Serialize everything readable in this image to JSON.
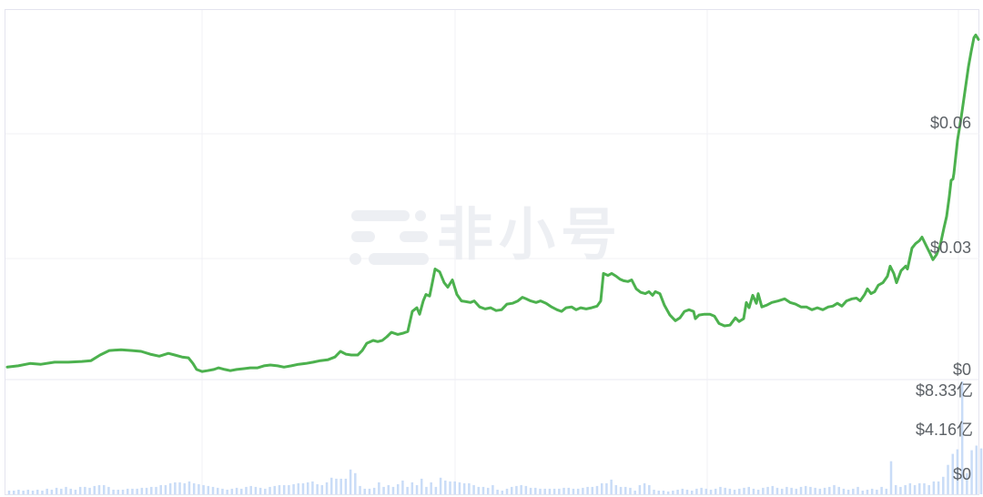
{
  "watermark": {
    "text": "非小号",
    "icon": "feixiaohao-logo"
  },
  "colors": {
    "price_line": "#4cb14e",
    "volume_bar": "#c9dcf7",
    "grid_light": "#f1f1f6",
    "grid_separator": "#e9e9f1",
    "border": "#e4e4ef",
    "axis_label": "#5c6166",
    "watermark": "#edeff3",
    "background": "#ffffff"
  },
  "chart_data": {
    "type": "line",
    "title": "",
    "xlabel": "",
    "ylabel": "",
    "legend": "none",
    "grid": "on",
    "panes": [
      "price",
      "volume"
    ],
    "price_axis": {
      "position": "inside-right",
      "ticks": [
        "$0.06",
        "$0.03",
        "$0"
      ],
      "tick_values": [
        0.06,
        0.03,
        0
      ],
      "min": 0,
      "max": 0.09
    },
    "volume_axis": {
      "position": "inside-right",
      "ticks": [
        "$8.33亿",
        "$4.16亿",
        "$0"
      ],
      "tick_values": [
        833000000,
        416000000,
        0
      ],
      "min_yi": 0,
      "max_yi": 12.49
    },
    "price_series": {
      "name": "price-usd",
      "unit": "$",
      "points": [
        [
          8,
          0.0031
        ],
        [
          20,
          0.0034
        ],
        [
          33,
          0.004
        ],
        [
          45,
          0.0038
        ],
        [
          60,
          0.0043
        ],
        [
          75,
          0.0043
        ],
        [
          90,
          0.0045
        ],
        [
          100,
          0.0047
        ],
        [
          110,
          0.0061
        ],
        [
          120,
          0.0072
        ],
        [
          133,
          0.0074
        ],
        [
          145,
          0.0072
        ],
        [
          155,
          0.007
        ],
        [
          165,
          0.0063
        ],
        [
          175,
          0.0058
        ],
        [
          185,
          0.0065
        ],
        [
          192,
          0.0061
        ],
        [
          200,
          0.0056
        ],
        [
          207,
          0.0054
        ],
        [
          212,
          0.004
        ],
        [
          216,
          0.0025
        ],
        [
          222,
          0.002
        ],
        [
          228,
          0.0022
        ],
        [
          235,
          0.0025
        ],
        [
          240,
          0.0029
        ],
        [
          247,
          0.0025
        ],
        [
          253,
          0.0022
        ],
        [
          260,
          0.0025
        ],
        [
          268,
          0.0027
        ],
        [
          275,
          0.0029
        ],
        [
          283,
          0.0029
        ],
        [
          290,
          0.0034
        ],
        [
          297,
          0.0036
        ],
        [
          305,
          0.0034
        ],
        [
          312,
          0.0031
        ],
        [
          320,
          0.0034
        ],
        [
          328,
          0.0038
        ],
        [
          336,
          0.004
        ],
        [
          344,
          0.0043
        ],
        [
          352,
          0.0047
        ],
        [
          360,
          0.0049
        ],
        [
          368,
          0.0056
        ],
        [
          374,
          0.007
        ],
        [
          380,
          0.0063
        ],
        [
          386,
          0.0061
        ],
        [
          393,
          0.0061
        ],
        [
          398,
          0.0072
        ],
        [
          403,
          0.009
        ],
        [
          410,
          0.0097
        ],
        [
          415,
          0.0094
        ],
        [
          420,
          0.0097
        ],
        [
          425,
          0.0106
        ],
        [
          430,
          0.0117
        ],
        [
          437,
          0.0112
        ],
        [
          443,
          0.0115
        ],
        [
          448,
          0.0119
        ],
        [
          453,
          0.0169
        ],
        [
          458,
          0.0178
        ],
        [
          461,
          0.0162
        ],
        [
          465,
          0.0195
        ],
        [
          468,
          0.0211
        ],
        [
          472,
          0.0207
        ],
        [
          475,
          0.024
        ],
        [
          478,
          0.0274
        ],
        [
          483,
          0.0267
        ],
        [
          488,
          0.024
        ],
        [
          492,
          0.0229
        ],
        [
          497,
          0.0247
        ],
        [
          502,
          0.0211
        ],
        [
          507,
          0.0195
        ],
        [
          512,
          0.0193
        ],
        [
          517,
          0.0191
        ],
        [
          521,
          0.0195
        ],
        [
          527,
          0.018
        ],
        [
          533,
          0.0175
        ],
        [
          539,
          0.0178
        ],
        [
          545,
          0.0171
        ],
        [
          551,
          0.0173
        ],
        [
          557,
          0.0187
        ],
        [
          563,
          0.0189
        ],
        [
          569,
          0.0195
        ],
        [
          574,
          0.0204
        ],
        [
          578,
          0.02
        ],
        [
          583,
          0.0195
        ],
        [
          589,
          0.0191
        ],
        [
          594,
          0.0195
        ],
        [
          600,
          0.0189
        ],
        [
          606,
          0.018
        ],
        [
          612,
          0.0173
        ],
        [
          617,
          0.0169
        ],
        [
          622,
          0.0178
        ],
        [
          628,
          0.018
        ],
        [
          633,
          0.0173
        ],
        [
          638,
          0.0178
        ],
        [
          644,
          0.0175
        ],
        [
          650,
          0.0178
        ],
        [
          656,
          0.0182
        ],
        [
          660,
          0.0195
        ],
        [
          663,
          0.0263
        ],
        [
          668,
          0.0258
        ],
        [
          672,
          0.0263
        ],
        [
          677,
          0.0256
        ],
        [
          681,
          0.0249
        ],
        [
          685,
          0.0245
        ],
        [
          690,
          0.0243
        ],
        [
          694,
          0.0247
        ],
        [
          699,
          0.0225
        ],
        [
          704,
          0.0216
        ],
        [
          709,
          0.0213
        ],
        [
          713,
          0.0218
        ],
        [
          717,
          0.0209
        ],
        [
          720,
          0.0218
        ],
        [
          725,
          0.0213
        ],
        [
          730,
          0.0184
        ],
        [
          736,
          0.016
        ],
        [
          742,
          0.0146
        ],
        [
          747,
          0.0153
        ],
        [
          752,
          0.0169
        ],
        [
          757,
          0.0173
        ],
        [
          762,
          0.0169
        ],
        [
          764,
          0.0151
        ],
        [
          768,
          0.016
        ],
        [
          774,
          0.0162
        ],
        [
          780,
          0.0162
        ],
        [
          785,
          0.0157
        ],
        [
          790,
          0.0139
        ],
        [
          796,
          0.0133
        ],
        [
          802,
          0.0135
        ],
        [
          808,
          0.0153
        ],
        [
          812,
          0.0144
        ],
        [
          817,
          0.0151
        ],
        [
          820,
          0.0191
        ],
        [
          823,
          0.0178
        ],
        [
          827,
          0.0209
        ],
        [
          831,
          0.0189
        ],
        [
          833,
          0.0213
        ],
        [
          837,
          0.018
        ],
        [
          842,
          0.0184
        ],
        [
          848,
          0.0191
        ],
        [
          855,
          0.0195
        ],
        [
          862,
          0.02
        ],
        [
          868,
          0.0191
        ],
        [
          874,
          0.0187
        ],
        [
          880,
          0.018
        ],
        [
          886,
          0.018
        ],
        [
          892,
          0.0173
        ],
        [
          898,
          0.0178
        ],
        [
          904,
          0.0173
        ],
        [
          910,
          0.018
        ],
        [
          915,
          0.0182
        ],
        [
          920,
          0.0189
        ],
        [
          925,
          0.0182
        ],
        [
          930,
          0.0195
        ],
        [
          936,
          0.02
        ],
        [
          941,
          0.0202
        ],
        [
          945,
          0.0195
        ],
        [
          950,
          0.0211
        ],
        [
          953,
          0.0225
        ],
        [
          957,
          0.0213
        ],
        [
          961,
          0.0218
        ],
        [
          965,
          0.0234
        ],
        [
          970,
          0.024
        ],
        [
          975,
          0.0256
        ],
        [
          978,
          0.0281
        ],
        [
          982,
          0.0263
        ],
        [
          985,
          0.024
        ],
        [
          990,
          0.027
        ],
        [
          995,
          0.0281
        ],
        [
          997,
          0.0274
        ],
        [
          1002,
          0.0326
        ],
        [
          1006,
          0.0337
        ],
        [
          1010,
          0.0344
        ],
        [
          1013,
          0.0353
        ],
        [
          1018,
          0.033
        ],
        [
          1022,
          0.0312
        ],
        [
          1025,
          0.0297
        ],
        [
          1029,
          0.031
        ],
        [
          1033,
          0.0333
        ],
        [
          1037,
          0.0375
        ],
        [
          1040,
          0.0404
        ],
        [
          1043,
          0.0454
        ],
        [
          1045,
          0.0494
        ],
        [
          1047,
          0.0497
        ],
        [
          1048,
          0.051
        ],
        [
          1052,
          0.0593
        ],
        [
          1056,
          0.0649
        ],
        [
          1060,
          0.0712
        ],
        [
          1064,
          0.0775
        ],
        [
          1067,
          0.0813
        ],
        [
          1070,
          0.0847
        ],
        [
          1072,
          0.0854
        ],
        [
          1075,
          0.0843
        ]
      ]
    },
    "volume_series": {
      "name": "volume-yi",
      "unit": "亿",
      "values": [
        0.4,
        0.4,
        0.5,
        0.4,
        0.5,
        0.4,
        0.5,
        0.4,
        0.6,
        0.5,
        0.7,
        0.6,
        0.8,
        0.6,
        0.5,
        0.8,
        0.8,
        0.7,
        0.9,
        1.0,
        1.0,
        0.8,
        0.5,
        0.5,
        0.5,
        0.6,
        0.6,
        0.6,
        0.7,
        0.7,
        0.8,
        0.8,
        1.0,
        1.0,
        1.2,
        1.3,
        1.3,
        1.2,
        1.4,
        1.2,
        1.1,
        1.0,
        0.9,
        0.8,
        0.7,
        0.6,
        0.5,
        0.6,
        0.7,
        0.6,
        0.8,
        0.9,
        0.8,
        0.7,
        0.6,
        0.8,
        0.9,
        1.0,
        1.0,
        1.0,
        1.1,
        1.2,
        1.2,
        1.3,
        1.4,
        1.1,
        1.0,
        1.3,
        1.8,
        1.7,
        1.7,
        1.7,
        2.7,
        2.3,
        0.9,
        0.6,
        0.6,
        0.7,
        1.3,
        0.8,
        1.0,
        0.8,
        1.1,
        1.5,
        0.8,
        1.3,
        1.0,
        1.7,
        0.8,
        1.3,
        0.8,
        1.8,
        1.5,
        1.4,
        1.4,
        1.3,
        1.2,
        1.2,
        1.0,
        0.8,
        0.8,
        0.7,
        1.0,
        0.5,
        0.4,
        0.6,
        0.8,
        0.9,
        1.0,
        0.9,
        0.7,
        0.7,
        0.6,
        0.6,
        0.6,
        0.6,
        0.6,
        0.7,
        0.7,
        0.6,
        0.6,
        0.7,
        0.8,
        0.8,
        0.9,
        1.2,
        1.2,
        1.6,
        1.0,
        0.8,
        0.8,
        0.7,
        0.4,
        1.0,
        1.2,
        1.0,
        0.5,
        0.4,
        0.4,
        0.3,
        0.4,
        0.5,
        0.6,
        0.5,
        0.4,
        0.6,
        0.7,
        0.6,
        0.5,
        0.6,
        0.8,
        0.7,
        0.6,
        0.5,
        0.6,
        0.7,
        0.8,
        0.6,
        0.5,
        0.7,
        0.8,
        0.9,
        0.7,
        0.6,
        0.8,
        0.7,
        0.6,
        0.8,
        0.9,
        0.8,
        0.7,
        0.6,
        0.7,
        0.8,
        1.0,
        0.8,
        0.6,
        0.5,
        0.6,
        0.8,
        0.4,
        0.5,
        0.6,
        0.5,
        0.8,
        0.6,
        3.6,
        1.0,
        0.8,
        1.0,
        1.2,
        1.0,
        1.2,
        1.2,
        1.0,
        1.4,
        1.4,
        1.9,
        3.2,
        4.4,
        4.9,
        12.3,
        2.3,
        4.8,
        5.3,
        5.0
      ]
    }
  }
}
